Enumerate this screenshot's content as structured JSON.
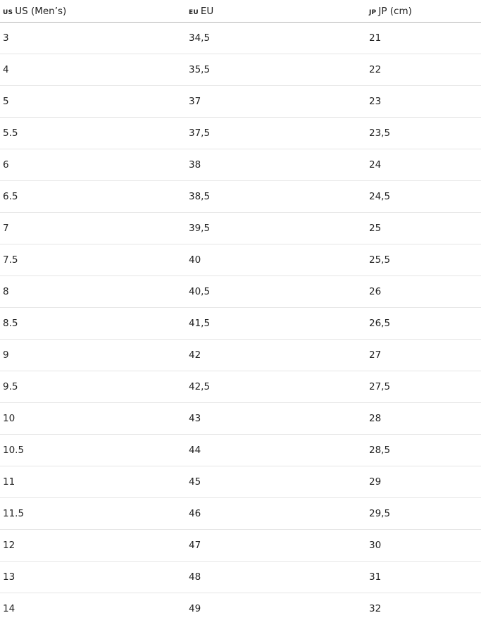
{
  "table": {
    "header": [
      {
        "badge": "US",
        "label": "US (Men’s)"
      },
      {
        "badge": "EU",
        "label": "EU"
      },
      {
        "badge": "JP",
        "label": "JP (cm)"
      }
    ],
    "rows": [
      [
        "3",
        "34,5",
        "21"
      ],
      [
        "4",
        "35,5",
        "22"
      ],
      [
        "5",
        "37",
        "23"
      ],
      [
        "5.5",
        "37,5",
        "23,5"
      ],
      [
        "6",
        "38",
        "24"
      ],
      [
        "6.5",
        "38,5",
        "24,5"
      ],
      [
        "7",
        "39,5",
        "25"
      ],
      [
        "7.5",
        "40",
        "25,5"
      ],
      [
        "8",
        "40,5",
        "26"
      ],
      [
        "8.5",
        "41,5",
        "26,5"
      ],
      [
        "9",
        "42",
        "27"
      ],
      [
        "9.5",
        "42,5",
        "27,5"
      ],
      [
        "10",
        "43",
        "28"
      ],
      [
        "10.5",
        "44",
        "28,5"
      ],
      [
        "11",
        "45",
        "29"
      ],
      [
        "11.5",
        "46",
        "29,5"
      ],
      [
        "12",
        "47",
        "30"
      ],
      [
        "13",
        "48",
        "31"
      ],
      [
        "14",
        "49",
        "32"
      ]
    ]
  }
}
